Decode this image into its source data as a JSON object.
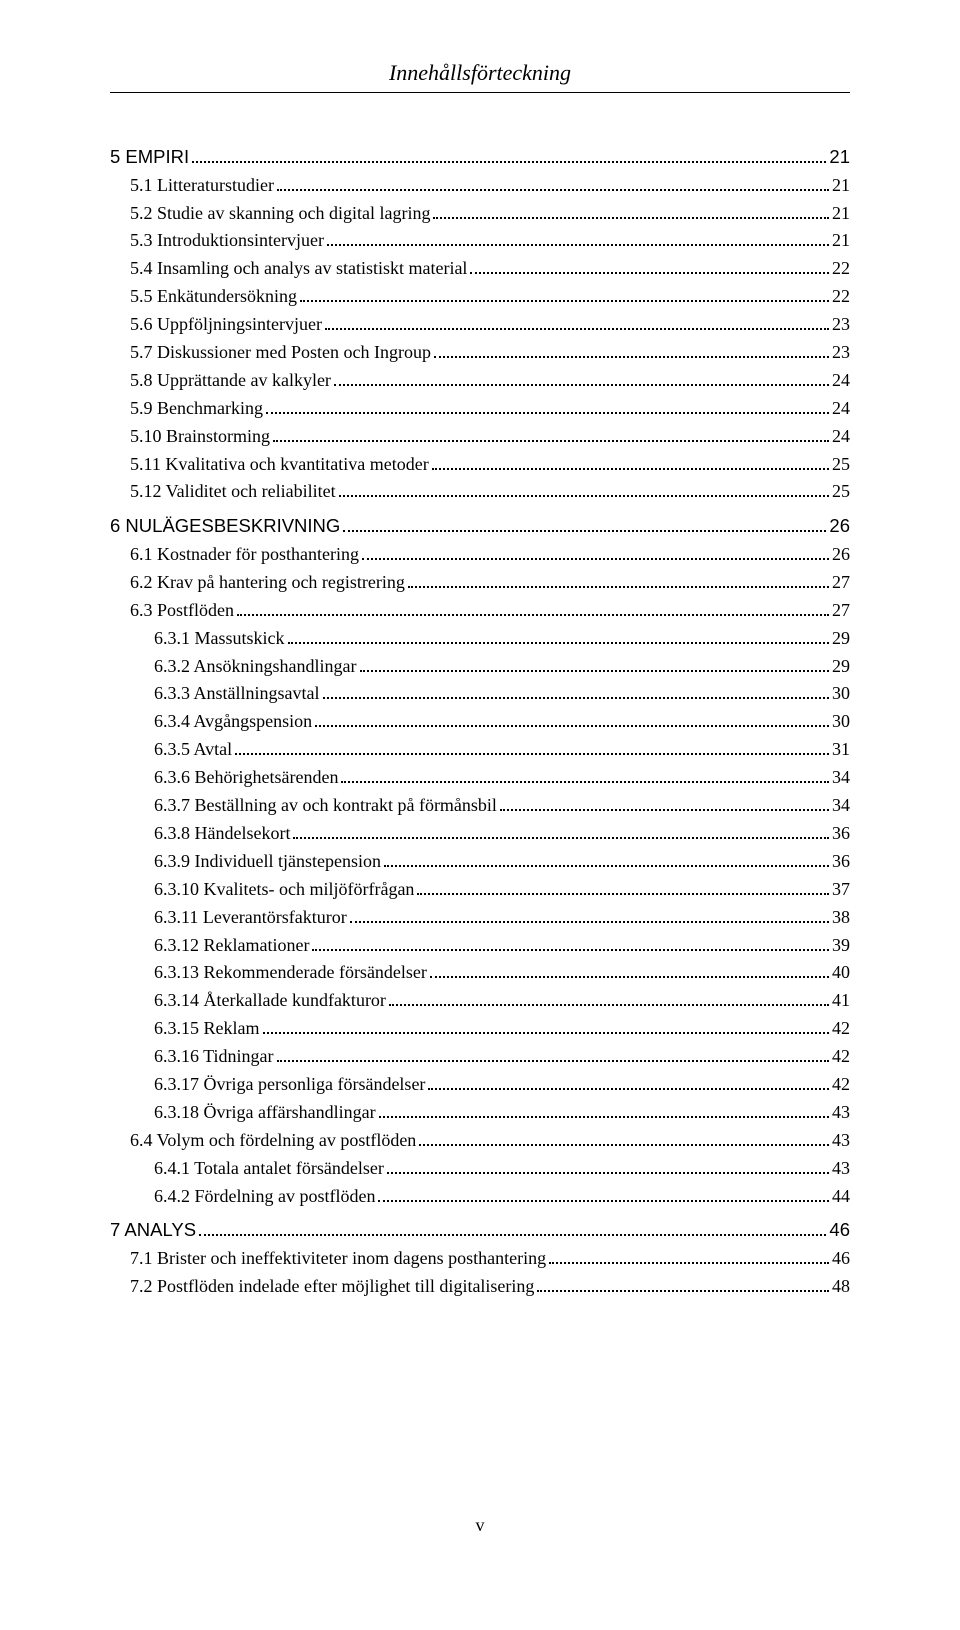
{
  "header": {
    "title": "Innehållsförteckning"
  },
  "footer": {
    "page": "v"
  },
  "toc": [
    {
      "level": 1,
      "label": "5 EMPIRI",
      "page": "21"
    },
    {
      "level": 2,
      "label": "5.1 Litteraturstudier",
      "page": "21"
    },
    {
      "level": 2,
      "label": "5.2 Studie av skanning och digital lagring",
      "page": "21"
    },
    {
      "level": 2,
      "label": "5.3 Introduktionsintervjuer",
      "page": "21"
    },
    {
      "level": 2,
      "label": "5.4 Insamling och analys av statistiskt material",
      "page": "22"
    },
    {
      "level": 2,
      "label": "5.5 Enkätundersökning",
      "page": "22"
    },
    {
      "level": 2,
      "label": "5.6 Uppföljningsintervjuer",
      "page": "23"
    },
    {
      "level": 2,
      "label": "5.7 Diskussioner med Posten och Ingroup",
      "page": "23"
    },
    {
      "level": 2,
      "label": "5.8 Upprättande av kalkyler",
      "page": "24"
    },
    {
      "level": 2,
      "label": "5.9 Benchmarking",
      "page": "24"
    },
    {
      "level": 2,
      "label": "5.10 Brainstorming",
      "page": "24"
    },
    {
      "level": 2,
      "label": "5.11 Kvalitativa och kvantitativa metoder",
      "page": "25"
    },
    {
      "level": 2,
      "label": "5.12 Validitet och reliabilitet",
      "page": "25"
    },
    {
      "level": 1,
      "label": "6 NULÄGESBESKRIVNING",
      "page": "26"
    },
    {
      "level": 2,
      "label": "6.1 Kostnader för posthantering",
      "page": "26"
    },
    {
      "level": 2,
      "label": "6.2  Krav på hantering och registrering",
      "page": "27"
    },
    {
      "level": 2,
      "label": "6.3 Postflöden",
      "page": "27"
    },
    {
      "level": 3,
      "label": "6.3.1 Massutskick",
      "page": "29"
    },
    {
      "level": 3,
      "label": "6.3.2 Ansökningshandlingar",
      "page": "29"
    },
    {
      "level": 3,
      "label": "6.3.3 Anställningsavtal",
      "page": "30"
    },
    {
      "level": 3,
      "label": "6.3.4 Avgångspension",
      "page": "30"
    },
    {
      "level": 3,
      "label": "6.3.5 Avtal",
      "page": "31"
    },
    {
      "level": 3,
      "label": "6.3.6 Behörighetsärenden",
      "page": "34"
    },
    {
      "level": 3,
      "label": "6.3.7 Beställning av och kontrakt på förmånsbil",
      "page": "34"
    },
    {
      "level": 3,
      "label": "6.3.8 Händelsekort",
      "page": "36"
    },
    {
      "level": 3,
      "label": "6.3.9 Individuell tjänstepension",
      "page": "36"
    },
    {
      "level": 3,
      "label": "6.3.10 Kvalitets- och miljöförfrågan",
      "page": "37"
    },
    {
      "level": 3,
      "label": "6.3.11 Leverantörsfakturor",
      "page": "38"
    },
    {
      "level": 3,
      "label": "6.3.12 Reklamationer",
      "page": "39"
    },
    {
      "level": 3,
      "label": "6.3.13 Rekommenderade försändelser",
      "page": "40"
    },
    {
      "level": 3,
      "label": "6.3.14 Återkallade kundfakturor",
      "page": "41"
    },
    {
      "level": 3,
      "label": "6.3.15 Reklam",
      "page": "42"
    },
    {
      "level": 3,
      "label": "6.3.16 Tidningar",
      "page": "42"
    },
    {
      "level": 3,
      "label": "6.3.17 Övriga personliga försändelser",
      "page": "42"
    },
    {
      "level": 3,
      "label": "6.3.18 Övriga affärshandlingar",
      "page": "43"
    },
    {
      "level": 2,
      "label": "6.4 Volym och fördelning av postflöden",
      "page": "43"
    },
    {
      "level": 3,
      "label": "6.4.1 Totala antalet försändelser",
      "page": "43"
    },
    {
      "level": 3,
      "label": "6.4.2 Fördelning av postflöden",
      "page": "44"
    },
    {
      "level": 1,
      "label": "7 ANALYS",
      "page": "46"
    },
    {
      "level": 2,
      "label": "7.1 Brister och ineffektiviteter inom dagens posthantering",
      "page": "46"
    },
    {
      "level": 2,
      "label": "7.2 Postflöden indelade efter möjlighet till digitalisering",
      "page": "48"
    }
  ]
}
